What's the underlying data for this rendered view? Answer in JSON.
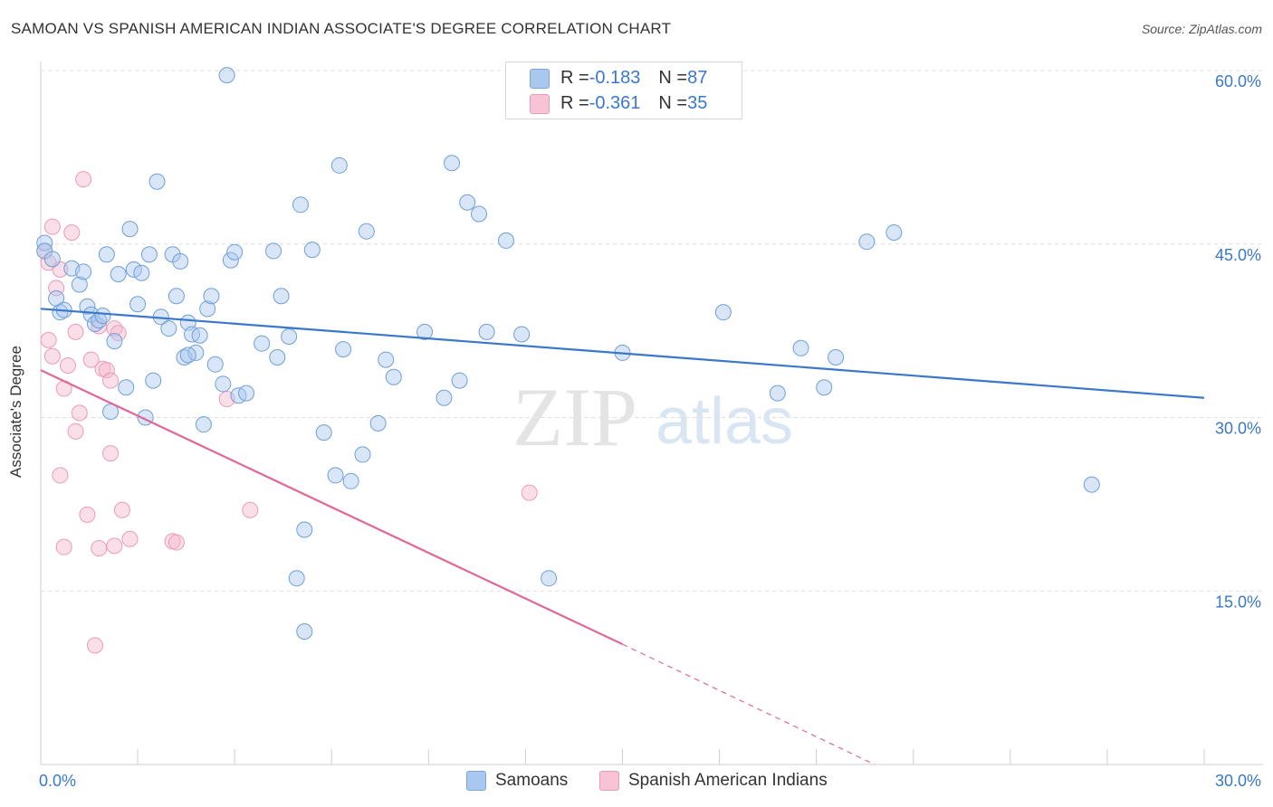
{
  "header": {
    "title": "SAMOAN VS SPANISH AMERICAN INDIAN ASSOCIATE'S DEGREE CORRELATION CHART",
    "source": "Source: ZipAtlas.com"
  },
  "legend_top": {
    "rows": [
      {
        "r_label": "R = ",
        "r_value": "-0.183",
        "n_label": "N = ",
        "n_value": "87"
      },
      {
        "r_label": "R = ",
        "r_value": "-0.361",
        "n_label": "N = ",
        "n_value": "35"
      }
    ]
  },
  "legend_bottom": {
    "items": [
      "Samoans",
      "Spanish American Indians"
    ]
  },
  "watermark": {
    "zip": "ZIP",
    "atlas": "atlas"
  },
  "colors": {
    "blue": "#3a78c9",
    "blue_fill": "#a9c8ef",
    "pink": "#e0689a",
    "pink_fill": "#f5b8cd",
    "grid": "#dcdcdc"
  },
  "chart_data": {
    "type": "scatter",
    "title": "SAMOAN VS SPANISH AMERICAN INDIAN ASSOCIATE'S DEGREE CORRELATION CHART",
    "xlabel": "",
    "ylabel": "Associate's Degree",
    "xlim": [
      0,
      30
    ],
    "ylim": [
      0,
      60
    ],
    "x_tick_labels": [
      "0.0%",
      "30.0%"
    ],
    "y_ticks": [
      15,
      30,
      45,
      60
    ],
    "y_tick_labels": [
      "15.0%",
      "30.0%",
      "45.0%",
      "60.0%"
    ],
    "grid": true,
    "legend_position": "top-center",
    "series": [
      {
        "name": "Samoans",
        "r": -0.183,
        "n": 87,
        "trend": {
          "x0": 0,
          "y0": 39.4,
          "x1": 30,
          "y1": 31.7
        },
        "points": [
          [
            0.1,
            45.1
          ],
          [
            0.1,
            44.4
          ],
          [
            0.3,
            43.7
          ],
          [
            0.4,
            40.3
          ],
          [
            0.5,
            39.1
          ],
          [
            0.6,
            39.3
          ],
          [
            0.8,
            42.9
          ],
          [
            1.0,
            41.5
          ],
          [
            1.1,
            42.6
          ],
          [
            1.2,
            39.6
          ],
          [
            1.3,
            38.9
          ],
          [
            1.4,
            38.1
          ],
          [
            1.5,
            38.4
          ],
          [
            1.6,
            38.8
          ],
          [
            1.7,
            44.1
          ],
          [
            1.8,
            30.5
          ],
          [
            1.9,
            36.6
          ],
          [
            2.0,
            42.4
          ],
          [
            2.2,
            32.6
          ],
          [
            2.3,
            46.3
          ],
          [
            2.4,
            42.8
          ],
          [
            2.5,
            39.8
          ],
          [
            2.6,
            42.5
          ],
          [
            2.7,
            30.0
          ],
          [
            2.8,
            44.1
          ],
          [
            2.9,
            33.2
          ],
          [
            3.0,
            50.4
          ],
          [
            3.1,
            38.7
          ],
          [
            3.3,
            37.7
          ],
          [
            3.4,
            44.1
          ],
          [
            3.5,
            40.5
          ],
          [
            3.6,
            43.5
          ],
          [
            3.7,
            35.2
          ],
          [
            3.8,
            38.2
          ],
          [
            3.9,
            37.2
          ],
          [
            4.0,
            35.6
          ],
          [
            4.1,
            37.1
          ],
          [
            4.2,
            29.4
          ],
          [
            4.3,
            39.4
          ],
          [
            4.4,
            40.5
          ],
          [
            4.5,
            34.6
          ],
          [
            4.7,
            32.9
          ],
          [
            4.8,
            59.6
          ],
          [
            4.9,
            43.6
          ],
          [
            5.0,
            44.3
          ],
          [
            5.1,
            31.9
          ],
          [
            5.3,
            32.1
          ],
          [
            5.7,
            36.4
          ],
          [
            6.0,
            44.4
          ],
          [
            6.1,
            35.2
          ],
          [
            6.2,
            40.5
          ],
          [
            6.7,
            48.4
          ],
          [
            6.8,
            20.3
          ],
          [
            7.0,
            44.5
          ],
          [
            7.3,
            28.7
          ],
          [
            7.6,
            25.0
          ],
          [
            7.7,
            51.8
          ],
          [
            7.8,
            35.9
          ],
          [
            8.0,
            24.5
          ],
          [
            8.3,
            26.8
          ],
          [
            8.4,
            46.1
          ],
          [
            8.7,
            29.5
          ],
          [
            8.9,
            35.0
          ],
          [
            9.1,
            33.5
          ],
          [
            9.9,
            37.4
          ],
          [
            10.4,
            31.7
          ],
          [
            10.6,
            52.0
          ],
          [
            10.8,
            33.2
          ],
          [
            11.0,
            48.6
          ],
          [
            11.3,
            47.6
          ],
          [
            11.5,
            37.4
          ],
          [
            12.0,
            45.3
          ],
          [
            12.4,
            37.2
          ],
          [
            13.1,
            16.1
          ],
          [
            15.0,
            35.6
          ],
          [
            17.6,
            39.1
          ],
          [
            19.0,
            32.1
          ],
          [
            19.6,
            36.0
          ],
          [
            20.2,
            32.6
          ],
          [
            20.5,
            35.2
          ],
          [
            21.3,
            45.2
          ],
          [
            22.0,
            46.0
          ],
          [
            27.1,
            24.2
          ],
          [
            6.6,
            16.1
          ],
          [
            6.8,
            11.5
          ],
          [
            3.8,
            35.4
          ],
          [
            6.4,
            37.0
          ]
        ]
      },
      {
        "name": "Spanish American Indians",
        "r": -0.361,
        "n": 35,
        "trend": {
          "x0": 0,
          "y0": 34.1,
          "x1": 15,
          "y1": 10.4
        },
        "trend_dashed": {
          "x0": 15,
          "y0": 10.4,
          "x1": 21.5,
          "y1": 0
        },
        "points": [
          [
            0.1,
            44.4
          ],
          [
            0.2,
            43.4
          ],
          [
            0.2,
            36.7
          ],
          [
            0.3,
            46.5
          ],
          [
            0.3,
            35.3
          ],
          [
            0.4,
            41.2
          ],
          [
            0.5,
            25.0
          ],
          [
            0.5,
            42.8
          ],
          [
            0.6,
            32.5
          ],
          [
            0.6,
            18.8
          ],
          [
            0.7,
            34.5
          ],
          [
            0.8,
            46.0
          ],
          [
            0.9,
            37.4
          ],
          [
            0.9,
            28.8
          ],
          [
            1.0,
            30.4
          ],
          [
            1.1,
            50.6
          ],
          [
            1.2,
            21.6
          ],
          [
            1.3,
            35.0
          ],
          [
            1.4,
            10.3
          ],
          [
            1.5,
            37.9
          ],
          [
            1.5,
            18.7
          ],
          [
            1.6,
            34.2
          ],
          [
            1.7,
            34.1
          ],
          [
            1.8,
            33.2
          ],
          [
            1.8,
            26.9
          ],
          [
            1.9,
            37.7
          ],
          [
            1.9,
            18.9
          ],
          [
            2.0,
            37.3
          ],
          [
            2.1,
            22.0
          ],
          [
            2.3,
            19.5
          ],
          [
            3.4,
            19.3
          ],
          [
            3.5,
            19.2
          ],
          [
            4.8,
            31.6
          ],
          [
            5.4,
            22.0
          ],
          [
            12.6,
            23.5
          ]
        ]
      }
    ]
  }
}
